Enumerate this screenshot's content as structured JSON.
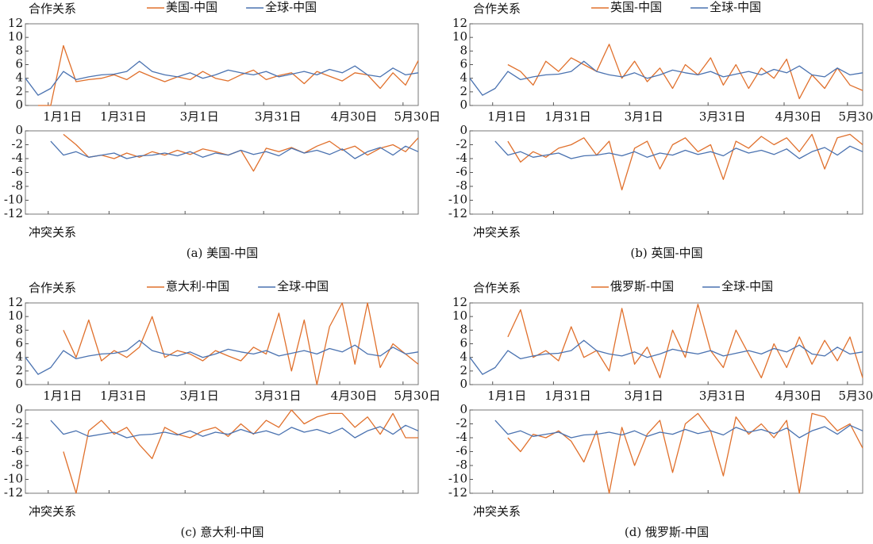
{
  "chart_data": [
    {
      "type": "line",
      "caption": "(a) 美国-中国",
      "x": [
        0,
        5,
        10,
        15,
        20,
        25,
        30,
        35,
        40,
        45,
        50,
        55,
        60,
        65,
        70,
        75,
        80,
        85,
        90,
        95,
        100,
        105,
        110,
        115,
        120,
        125,
        130,
        135,
        140,
        145,
        150,
        155
      ],
      "xlim": [
        0,
        155
      ],
      "xticks": [
        {
          "value": 9,
          "label": "1月1日"
        },
        {
          "value": 33,
          "label": "1月31日"
        },
        {
          "value": 63,
          "label": "3月1日"
        },
        {
          "value": 94,
          "label": "3月31日"
        },
        {
          "value": 124,
          "label": "4月30日"
        },
        {
          "value": 149,
          "label": "5月30日"
        }
      ],
      "cooperation": {
        "label": "合作关系",
        "ylim": [
          0,
          12
        ],
        "yticks": [
          0,
          2,
          4,
          6,
          8,
          10,
          12
        ],
        "series": [
          {
            "name": "美国-中国",
            "color": "#e0702c",
            "values": [
              null,
              0,
              0,
              8.8,
              3.5,
              3.8,
              4,
              4.5,
              3.8,
              5,
              4.2,
              3.5,
              4.2,
              3.8,
              5,
              4,
              3.6,
              4.5,
              5.2,
              3.8,
              4.4,
              4.8,
              3.2,
              5,
              4.3,
              3.6,
              4.8,
              4.5,
              2.5,
              4.8,
              3,
              6.6
            ]
          },
          {
            "name": "全球-中国",
            "color": "#4a72b0",
            "values": [
              4,
              1.5,
              2.5,
              5,
              3.8,
              4.2,
              4.5,
              4.6,
              5,
              6.5,
              5,
              4.5,
              4.2,
              4.8,
              4,
              4.5,
              5.2,
              4.8,
              4.5,
              5,
              4.2,
              4.6,
              5,
              4.5,
              5.3,
              4.8,
              5.8,
              4.5,
              4.2,
              5.5,
              4.5,
              4.8
            ]
          }
        ]
      },
      "conflict": {
        "label": "冲突关系",
        "ylim": [
          -12,
          0
        ],
        "yticks": [
          0,
          -2,
          -4,
          -6,
          -8,
          -10,
          -12
        ],
        "series": [
          {
            "color": "#e0702c",
            "values": [
              null,
              null,
              null,
              -0.5,
              -2,
              -3.8,
              -3.5,
              -4,
              -3.2,
              -3.8,
              -3,
              -3.5,
              -2.8,
              -3.4,
              -2.6,
              -3,
              -3.5,
              -2.8,
              -5.8,
              -2.5,
              -3,
              -2.4,
              -3.2,
              -2.2,
              -1.5,
              -2.8,
              -2.2,
              -3.5,
              -2.5,
              -2,
              -3,
              -1
            ]
          },
          {
            "color": "#4a72b0",
            "values": [
              null,
              null,
              -1.5,
              -3.5,
              -3,
              -3.8,
              -3.5,
              -3.2,
              -4,
              -3.6,
              -3.5,
              -3.2,
              -3.6,
              -3,
              -3.8,
              -3.2,
              -3.5,
              -2.8,
              -3.4,
              -3,
              -3.6,
              -2.5,
              -3.2,
              -2.8,
              -3.4,
              -2.6,
              -4,
              -3,
              -2.4,
              -3.5,
              -2.2,
              -3
            ]
          }
        ]
      }
    },
    {
      "type": "line",
      "caption": "(b) 英国-中国",
      "x": [
        0,
        5,
        10,
        15,
        20,
        25,
        30,
        35,
        40,
        45,
        50,
        55,
        60,
        65,
        70,
        75,
        80,
        85,
        90,
        95,
        100,
        105,
        110,
        115,
        120,
        125,
        130,
        135,
        140,
        145,
        150,
        155
      ],
      "xlim": [
        0,
        155
      ],
      "xticks": [
        {
          "value": 9,
          "label": "1月1日"
        },
        {
          "value": 33,
          "label": "1月31日"
        },
        {
          "value": 63,
          "label": "3月1日"
        },
        {
          "value": 94,
          "label": "3月31日"
        },
        {
          "value": 124,
          "label": "4月30日"
        },
        {
          "value": 149,
          "label": "5月30日"
        }
      ],
      "cooperation": {
        "label": "合作关系",
        "ylim": [
          0,
          12
        ],
        "yticks": [
          0,
          2,
          4,
          6,
          8,
          10,
          12
        ],
        "series": [
          {
            "name": "英国-中国",
            "color": "#e0702c",
            "values": [
              null,
              null,
              null,
              6,
              5,
              3,
              6.5,
              5,
              7,
              6,
              5,
              9,
              4,
              6.5,
              3.5,
              5.5,
              2.5,
              6,
              4.5,
              7,
              3,
              6,
              2.5,
              5.5,
              4,
              6.8,
              1,
              4.5,
              2.5,
              5.5,
              3,
              2.2
            ]
          },
          {
            "name": "全球-中国",
            "color": "#4a72b0",
            "values": [
              4,
              1.5,
              2.5,
              5,
              3.8,
              4.2,
              4.5,
              4.6,
              5,
              6.5,
              5,
              4.5,
              4.2,
              4.8,
              4,
              4.5,
              5.2,
              4.8,
              4.5,
              5,
              4.2,
              4.6,
              5,
              4.5,
              5.3,
              4.8,
              5.8,
              4.5,
              4.2,
              5.5,
              4.5,
              4.8
            ]
          }
        ]
      },
      "conflict": {
        "label": "冲突关系",
        "ylim": [
          -12,
          0
        ],
        "yticks": [
          0,
          -2,
          -4,
          -6,
          -8,
          -10,
          -12
        ],
        "series": [
          {
            "color": "#e0702c",
            "values": [
              null,
              null,
              null,
              -1.5,
              -4.5,
              -3,
              -3.8,
              -2.5,
              -2,
              -1,
              -3.5,
              -1.5,
              -8.5,
              -2.5,
              -1.5,
              -5.5,
              -2,
              -1,
              -3,
              -2,
              -7,
              -1.5,
              -2.5,
              -0.8,
              -2,
              -1,
              -3,
              -0.5,
              -5.5,
              -1,
              -0.5,
              -2
            ]
          },
          {
            "color": "#4a72b0",
            "values": [
              null,
              null,
              -1.5,
              -3.5,
              -3,
              -3.8,
              -3.5,
              -3.2,
              -4,
              -3.6,
              -3.5,
              -3.2,
              -3.6,
              -3,
              -3.8,
              -3.2,
              -3.5,
              -2.8,
              -3.4,
              -3,
              -3.6,
              -2.5,
              -3.2,
              -2.8,
              -3.4,
              -2.6,
              -4,
              -3,
              -2.4,
              -3.5,
              -2.2,
              -3
            ]
          }
        ]
      }
    },
    {
      "type": "line",
      "caption": "(c) 意大利-中国",
      "x": [
        0,
        5,
        10,
        15,
        20,
        25,
        30,
        35,
        40,
        45,
        50,
        55,
        60,
        65,
        70,
        75,
        80,
        85,
        90,
        95,
        100,
        105,
        110,
        115,
        120,
        125,
        130,
        135,
        140,
        145,
        150,
        155
      ],
      "xlim": [
        0,
        155
      ],
      "xticks": [
        {
          "value": 9,
          "label": "1月1日"
        },
        {
          "value": 33,
          "label": "1月31日"
        },
        {
          "value": 63,
          "label": "3月1日"
        },
        {
          "value": 94,
          "label": "3月31日"
        },
        {
          "value": 124,
          "label": "4月30日"
        },
        {
          "value": 149,
          "label": "5月30日"
        }
      ],
      "cooperation": {
        "label": "合作关系",
        "ylim": [
          0,
          12
        ],
        "yticks": [
          0,
          2,
          4,
          6,
          8,
          10,
          12
        ],
        "series": [
          {
            "name": "意大利-中国",
            "color": "#e0702c",
            "values": [
              null,
              null,
              null,
              8,
              4,
              9.5,
              3.5,
              5,
              4,
              5.5,
              10,
              4,
              5,
              4.5,
              3.5,
              5,
              4.2,
              3.5,
              5.5,
              4.5,
              10.5,
              2,
              9.5,
              0,
              8.5,
              12,
              3,
              12,
              2.5,
              6,
              4.5,
              3
            ]
          },
          {
            "name": "全球-中国",
            "color": "#4a72b0",
            "values": [
              4,
              1.5,
              2.5,
              5,
              3.8,
              4.2,
              4.5,
              4.6,
              5,
              6.5,
              5,
              4.5,
              4.2,
              4.8,
              4,
              4.5,
              5.2,
              4.8,
              4.5,
              5,
              4.2,
              4.6,
              5,
              4.5,
              5.3,
              4.8,
              5.8,
              4.5,
              4.2,
              5.5,
              4.5,
              4.8
            ]
          }
        ]
      },
      "conflict": {
        "label": "冲突关系",
        "ylim": [
          -12,
          0
        ],
        "yticks": [
          0,
          -2,
          -4,
          -6,
          -8,
          -10,
          -12
        ],
        "series": [
          {
            "color": "#e0702c",
            "values": [
              null,
              null,
              null,
              -6,
              -12,
              -3,
              -1.5,
              -3.5,
              -2.5,
              -5,
              -7,
              -2.5,
              -3.5,
              -4,
              -3,
              -2.5,
              -3.8,
              -2,
              -3.5,
              -1.5,
              -2.5,
              0,
              -2,
              -1,
              -0.5,
              -0.5,
              -2.5,
              -1,
              -3.5,
              -0.5,
              -4,
              -4
            ]
          },
          {
            "color": "#4a72b0",
            "values": [
              null,
              null,
              -1.5,
              -3.5,
              -3,
              -3.8,
              -3.5,
              -3.2,
              -4,
              -3.6,
              -3.5,
              -3.2,
              -3.6,
              -3,
              -3.8,
              -3.2,
              -3.5,
              -2.8,
              -3.4,
              -3,
              -3.6,
              -2.5,
              -3.2,
              -2.8,
              -3.4,
              -2.6,
              -4,
              -3,
              -2.4,
              -3.5,
              -2.2,
              -3
            ]
          }
        ]
      }
    },
    {
      "type": "line",
      "caption": "(d) 俄罗斯-中国",
      "x": [
        0,
        5,
        10,
        15,
        20,
        25,
        30,
        35,
        40,
        45,
        50,
        55,
        60,
        65,
        70,
        75,
        80,
        85,
        90,
        95,
        100,
        105,
        110,
        115,
        120,
        125,
        130,
        135,
        140,
        145,
        150,
        155
      ],
      "xlim": [
        0,
        155
      ],
      "xticks": [
        {
          "value": 9,
          "label": "1月1日"
        },
        {
          "value": 33,
          "label": "1月31日"
        },
        {
          "value": 63,
          "label": "3月1日"
        },
        {
          "value": 94,
          "label": "3月31日"
        },
        {
          "value": 124,
          "label": "4月30日"
        },
        {
          "value": 149,
          "label": "5月30日"
        }
      ],
      "cooperation": {
        "label": "合作关系",
        "ylim": [
          0,
          12
        ],
        "yticks": [
          0,
          2,
          4,
          6,
          8,
          10,
          12
        ],
        "series": [
          {
            "name": "俄罗斯-中国",
            "color": "#e0702c",
            "values": [
              null,
              null,
              null,
              7,
              11,
              4,
              5,
              3.5,
              8.5,
              4,
              5,
              2,
              11.2,
              3,
              5.5,
              1,
              8,
              4,
              11.8,
              5,
              2.5,
              8,
              4.5,
              1,
              6,
              2.5,
              7,
              3,
              6.5,
              3.5,
              7,
              1
            ]
          },
          {
            "name": "全球-中国",
            "color": "#4a72b0",
            "values": [
              4,
              1.5,
              2.5,
              5,
              3.8,
              4.2,
              4.5,
              4.6,
              5,
              6.5,
              5,
              4.5,
              4.2,
              4.8,
              4,
              4.5,
              5.2,
              4.8,
              4.5,
              5,
              4.2,
              4.6,
              5,
              4.5,
              5.3,
              4.8,
              5.8,
              4.5,
              4.2,
              5.5,
              4.5,
              4.8
            ]
          }
        ]
      },
      "conflict": {
        "label": "冲突关系",
        "ylim": [
          -12,
          0
        ],
        "yticks": [
          0,
          -2,
          -4,
          -6,
          -8,
          -10,
          -12
        ],
        "series": [
          {
            "color": "#e0702c",
            "values": [
              null,
              null,
              null,
              -4,
              -6,
              -3.5,
              -4,
              -3,
              -4.5,
              -7.5,
              -3,
              -12,
              -2.5,
              -8,
              -3.5,
              -1.5,
              -9,
              -2,
              -0.5,
              -3,
              -9.5,
              -1,
              -3.5,
              -2,
              -4,
              -1.5,
              -12,
              -0.5,
              -1,
              -3,
              -2,
              -5.5
            ]
          },
          {
            "color": "#4a72b0",
            "values": [
              null,
              null,
              -1.5,
              -3.5,
              -3,
              -3.8,
              -3.5,
              -3.2,
              -4,
              -3.6,
              -3.5,
              -3.2,
              -3.6,
              -3,
              -3.8,
              -3.2,
              -3.5,
              -2.8,
              -3.4,
              -3,
              -3.6,
              -2.5,
              -3.2,
              -2.8,
              -3.4,
              -2.6,
              -4,
              -3,
              -2.4,
              -3.5,
              -2.2,
              -3
            ]
          }
        ]
      }
    }
  ]
}
